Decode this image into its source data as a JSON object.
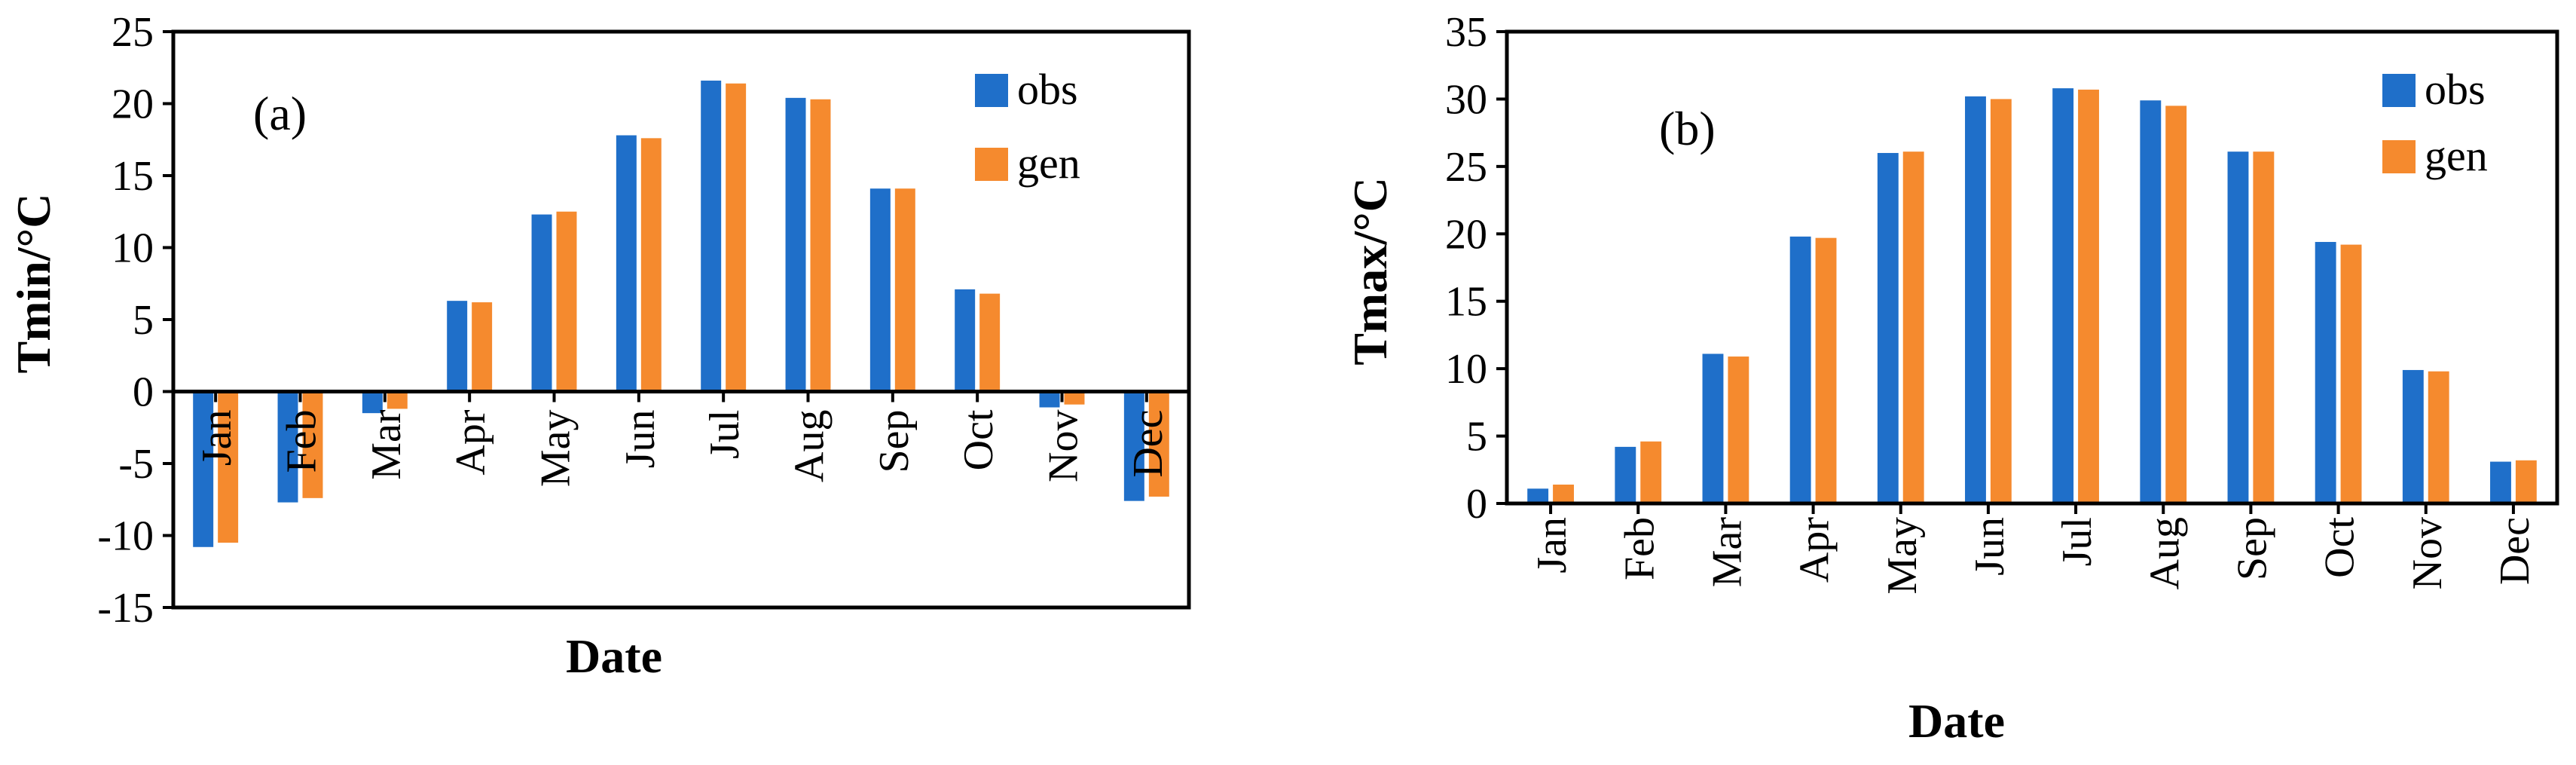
{
  "colors": {
    "obs": "#1f6fc9",
    "gen": "#f58a2e",
    "axis": "#000000",
    "background": "#ffffff"
  },
  "chart_data": [
    {
      "type": "bar",
      "panel_label": "(a)",
      "title": "",
      "xlabel": "Date",
      "ylabel": "Tmin/°C",
      "ylim": [
        -15,
        25
      ],
      "yticks": [
        "-15",
        "-10",
        "-5",
        "0",
        "5",
        "10",
        "15",
        "20",
        "25"
      ],
      "ytick_values": [
        -15,
        -10,
        -5,
        0,
        5,
        10,
        15,
        20,
        25
      ],
      "grid": false,
      "legend": "top-right",
      "category_label_position": "at-zero-line",
      "categories": [
        "Jan",
        "Feb",
        "Mar",
        "Apr",
        "May",
        "Jun",
        "Jul",
        "Aug",
        "Sep",
        "Oct",
        "Nov",
        "Dec"
      ],
      "series": [
        {
          "name": "obs",
          "values": [
            -10.8,
            -7.7,
            -1.5,
            6.3,
            12.3,
            17.8,
            21.6,
            20.4,
            14.1,
            7.1,
            -1.1,
            -7.6
          ]
        },
        {
          "name": "gen",
          "values": [
            -10.5,
            -7.4,
            -1.2,
            6.2,
            12.5,
            17.6,
            21.4,
            20.3,
            14.1,
            6.8,
            -0.9,
            -7.3
          ]
        }
      ]
    },
    {
      "type": "bar",
      "panel_label": "(b)",
      "title": "",
      "xlabel": "Date",
      "ylabel": "Tmax/°C",
      "ylim": [
        0,
        35
      ],
      "yticks": [
        "0",
        "5",
        "10",
        "15",
        "20",
        "25",
        "30",
        "35"
      ],
      "ytick_values": [
        0,
        5,
        10,
        15,
        20,
        25,
        30,
        35
      ],
      "grid": false,
      "legend": "top-right",
      "category_label_position": "below-axis",
      "categories": [
        "Jan",
        "Feb",
        "Mar",
        "Apr",
        "May",
        "Jun",
        "Jul",
        "Aug",
        "Sep",
        "Oct",
        "Nov",
        "Dec"
      ],
      "series": [
        {
          "name": "obs",
          "values": [
            1.1,
            4.2,
            11.1,
            19.8,
            26.0,
            30.2,
            30.8,
            29.9,
            26.1,
            19.4,
            9.9,
            3.1
          ]
        },
        {
          "name": "gen",
          "values": [
            1.4,
            4.6,
            10.9,
            19.7,
            26.1,
            30.0,
            30.7,
            29.5,
            26.1,
            19.2,
            9.8,
            3.2
          ]
        }
      ]
    }
  ]
}
